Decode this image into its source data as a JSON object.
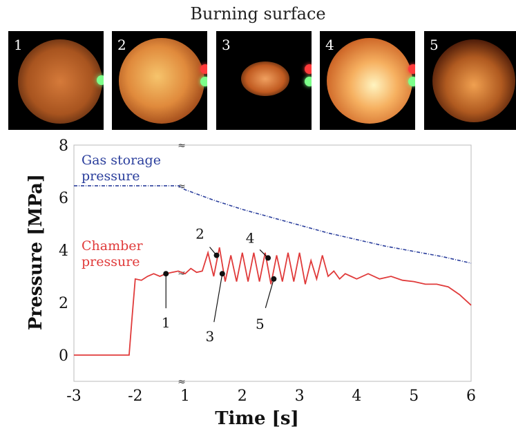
{
  "figure": {
    "title": "Burning surface",
    "photos": [
      {
        "label": "1"
      },
      {
        "label": "2"
      },
      {
        "label": "3"
      },
      {
        "label": "4"
      },
      {
        "label": "5"
      }
    ]
  },
  "chart_data": {
    "type": "line",
    "xlabel": "Time [s]",
    "ylabel": "Pressure [MPa]",
    "xlim": [
      -3,
      6
    ],
    "ylim": [
      -1,
      8
    ],
    "x_axis_break": "between -2 and 1",
    "x_ticks": [
      "-3",
      "-2",
      "1",
      "2",
      "3",
      "4",
      "5",
      "6"
    ],
    "y_ticks": [
      "0",
      "2",
      "4",
      "6",
      "8"
    ],
    "grid": true,
    "series": [
      {
        "name": "Gas storage\npressure",
        "color": "#2a3e9c",
        "style": "dash-dot",
        "x": [
          -3,
          -1.3,
          1,
          1.5,
          2,
          2.5,
          3,
          3.5,
          4,
          4.5,
          5,
          5.5,
          6
        ],
        "y": [
          6.45,
          6.45,
          6.3,
          5.9,
          5.55,
          5.25,
          4.95,
          4.65,
          4.4,
          4.15,
          3.95,
          3.75,
          3.5
        ]
      },
      {
        "name": "Chamber\npressure",
        "color": "#e03a3a",
        "style": "solid",
        "x": [
          -3,
          -2.1,
          -2.05,
          -2.0,
          -1.9,
          -1.8,
          -1.7,
          -1.6,
          -1.5,
          -1.4,
          -1.3,
          1.0,
          1.1,
          1.2,
          1.3,
          1.4,
          1.5,
          1.6,
          1.7,
          1.8,
          1.9,
          2.0,
          2.1,
          2.2,
          2.3,
          2.4,
          2.5,
          2.6,
          2.7,
          2.8,
          2.9,
          3.0,
          3.1,
          3.2,
          3.3,
          3.4,
          3.5,
          3.6,
          3.7,
          3.8,
          3.9,
          4.0,
          4.2,
          4.4,
          4.6,
          4.8,
          5.0,
          5.2,
          5.4,
          5.6,
          5.8,
          6.0
        ],
        "y": [
          0,
          0,
          1.5,
          2.9,
          2.85,
          3.0,
          3.1,
          3.0,
          3.1,
          3.15,
          3.2,
          3.1,
          3.3,
          3.15,
          3.2,
          3.9,
          3.0,
          4.1,
          2.8,
          3.8,
          2.8,
          3.9,
          2.8,
          3.9,
          2.8,
          3.9,
          2.7,
          3.8,
          2.8,
          3.9,
          2.8,
          3.9,
          2.7,
          3.6,
          2.9,
          3.8,
          3.0,
          3.2,
          2.9,
          3.1,
          3.0,
          2.9,
          3.1,
          2.9,
          3.0,
          2.85,
          2.8,
          2.7,
          2.7,
          2.6,
          2.3,
          1.9
        ]
      }
    ],
    "annotations": [
      {
        "label": "1",
        "x": -1.5,
        "y": 3.1
      },
      {
        "label": "2",
        "x": 1.55,
        "y": 3.8
      },
      {
        "label": "3",
        "x": 1.65,
        "y": 3.1
      },
      {
        "label": "4",
        "x": 2.45,
        "y": 3.7
      },
      {
        "label": "5",
        "x": 2.55,
        "y": 2.9
      }
    ]
  }
}
